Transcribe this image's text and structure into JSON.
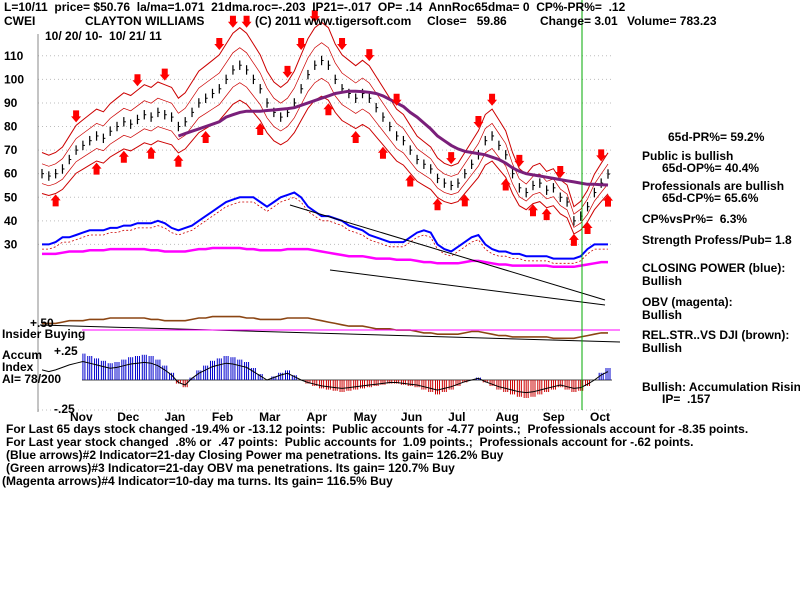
{
  "header": {
    "line1": "L=10/11  price= $50.76  la/ma=1.071  21dma.roc=-.203  IP21=-.017  OP= .14  AnnRoc65dma= 0  CP%-PR%=  .12",
    "ticker": "CWEI",
    "company": "CLAYTON WILLIAMS",
    "copyright": "(C) 2011 www.tigersoft.com",
    "close": "Close=   59.86",
    "change": "Change= 3.01",
    "volume": "Volume= 783.23",
    "date_range": "10/ 20/ 10-  10/ 21/ 11"
  },
  "side_panel": {
    "pr": "65d-PR%= 59.2%",
    "public": "Public is bullish",
    "op": "65d-OP%= 40.4%",
    "professionals": "Professionals are bullish",
    "cp": "65d-CP%= 65.6%",
    "cpvspr": "CP%vsPr%=  6.3%",
    "strength": "Strength Profess/Pub= 1.8",
    "closing_power_label": "CLOSING POWER (blue):",
    "closing_power_value": "Bullish",
    "obv_label": "OBV (magenta):",
    "obv_value": "Bullish",
    "relstr_label": "REL.STR..VS DJI (brown):",
    "relstr_value": "Bullish",
    "accum_label": "Bullish: Accumulation Rising",
    "ip_label": "IP=  .157"
  },
  "lower_labels": {
    "plus50": "+.50",
    "insider": "Insider Buying",
    "plus25": "+.25",
    "accum": "Accum",
    "index": "Index",
    "ai": "AI= 78/200",
    "minus25": "-.25"
  },
  "footer": {
    "line1": "For Last 65 days stock changed -19.4% or -13.12 points:  Public accounts for -4.77 points.;  Professionals account for -8.35 points.",
    "line2": "For Last year stock changed  .8% or  .47 points:  Public accounts for  1.09 points.;  Professionals account for -.62 points.",
    "line3": "(Blue arrows)#2 Indicator=21-day Closing Power ma penetrations. Its gain= 126.2% Buy",
    "line4": "(Green arrows)#3 Indicator=21-day OBV ma penetrations. Its gain= 120.7% Buy",
    "line5": "(Magenta arrows)#4 Indicator=10-day ma turns. Its gain= 116.5% Buy"
  },
  "colors": {
    "price": "#000000",
    "bands": "#cc0000",
    "ma65": "#7a1f7a",
    "closing_power": "#0000ff",
    "obv": "#ff00ff",
    "relstr": "#8b4513",
    "accum_pos": "#0000cc",
    "accum_neg": "#cc0000",
    "green_line": "#00aa00",
    "arrows": "#ff0000"
  },
  "chart_data": {
    "type": "line",
    "ylim": [
      20,
      115
    ],
    "yticks": [
      110,
      100,
      90,
      80,
      70,
      60,
      50,
      40,
      30
    ],
    "xticks": [
      "Nov",
      "Dec",
      "Jan",
      "Feb",
      "Mar",
      "Apr",
      "May",
      "Jun",
      "Jul",
      "Aug",
      "Sep",
      "Oct"
    ],
    "price": [
      60,
      59,
      60,
      62,
      66,
      70,
      72,
      74,
      76,
      75,
      78,
      80,
      82,
      81,
      83,
      85,
      84,
      86,
      85,
      84,
      80,
      82,
      86,
      90,
      92,
      94,
      96,
      100,
      104,
      106,
      104,
      100,
      96,
      90,
      86,
      84,
      86,
      90,
      96,
      102,
      106,
      108,
      106,
      100,
      96,
      94,
      92,
      94,
      92,
      88,
      84,
      80,
      76,
      74,
      70,
      66,
      64,
      62,
      58,
      56,
      55,
      56,
      60,
      64,
      68,
      74,
      76,
      72,
      68,
      60,
      54,
      52,
      55,
      56,
      53,
      54,
      50,
      48,
      40,
      42,
      46,
      52,
      56,
      59.86
    ],
    "ma65": [
      null,
      null,
      null,
      null,
      null,
      null,
      null,
      null,
      null,
      null,
      null,
      null,
      null,
      null,
      null,
      null,
      null,
      null,
      null,
      null,
      76,
      77,
      78,
      79,
      80,
      81,
      82,
      84,
      85,
      86,
      86.5,
      86.5,
      86.5,
      86.8,
      87,
      87.3,
      87.6,
      88,
      89,
      90,
      91,
      92,
      93,
      94,
      94.5,
      95,
      95,
      94.8,
      94.5,
      94,
      93,
      91.5,
      90,
      88.5,
      86,
      84,
      81.5,
      79,
      76,
      74,
      72,
      70.5,
      69.5,
      69,
      68.5,
      68,
      67,
      66,
      64.5,
      62.5,
      61,
      60,
      59.5,
      59,
      58.5,
      58,
      57.5,
      57,
      56.5,
      56,
      55.5,
      55.5,
      55.3,
      55.2
    ],
    "closing_power": [
      30,
      30,
      31,
      33,
      33,
      34,
      35,
      36,
      36,
      36,
      37,
      37,
      38,
      38,
      39,
      39,
      39,
      40,
      39,
      37,
      36,
      37,
      38,
      40,
      42,
      44,
      46,
      48,
      49,
      50,
      50,
      50,
      48,
      46,
      48,
      50,
      51,
      52,
      50,
      46,
      44,
      42,
      42,
      41,
      40,
      38,
      37,
      36,
      34,
      33,
      32,
      31,
      31,
      31,
      33,
      35,
      36,
      35,
      30,
      28,
      27,
      29,
      31,
      33,
      34,
      30,
      28,
      27,
      27,
      26,
      26,
      25,
      25,
      25,
      25,
      24,
      24,
      24,
      24,
      25,
      28,
      30,
      30,
      30
    ],
    "obv": [
      26,
      26,
      26,
      26.5,
      27,
      27,
      27,
      27.5,
      27.5,
      27.5,
      28,
      28,
      28,
      28,
      28,
      28,
      27.5,
      27.5,
      27,
      27,
      27,
      27,
      27.5,
      28,
      28,
      28.5,
      28.5,
      28.5,
      28.5,
      28.5,
      28,
      28,
      27.5,
      27.5,
      27.5,
      27.5,
      28,
      28,
      28,
      28,
      27.5,
      27,
      26.5,
      26,
      25.5,
      25,
      25,
      25,
      24.5,
      24,
      24,
      24,
      23.5,
      23.5,
      23.5,
      23,
      22.5,
      22.5,
      22,
      22,
      22,
      22,
      22.5,
      23,
      23,
      22.5,
      22,
      21.5,
      21.5,
      21,
      21,
      21,
      21,
      21,
      21,
      20.5,
      20.5,
      20.5,
      20.5,
      21,
      21.5,
      22,
      22.5,
      22.5
    ],
    "accum_index": [
      0.12,
      0.1,
      0.12,
      0.15,
      0.18,
      0.2,
      0.22,
      0.2,
      0.18,
      0.16,
      0.14,
      0.15,
      0.17,
      0.19,
      0.2,
      0.21,
      0.2,
      0.17,
      0.12,
      0.06,
      -0.03,
      -0.06,
      0.02,
      0.08,
      0.12,
      0.16,
      0.18,
      0.2,
      0.19,
      0.17,
      0.15,
      0.1,
      0.05,
      0.0,
      0.03,
      0.06,
      0.08,
      0.04,
      0.0,
      -0.03,
      -0.05,
      -0.07,
      -0.08,
      -0.09,
      -0.1,
      -0.09,
      -0.08,
      -0.07,
      -0.06,
      -0.05,
      -0.04,
      -0.03,
      -0.03,
      -0.04,
      -0.05,
      -0.06,
      -0.08,
      -0.1,
      -0.12,
      -0.1,
      -0.08,
      -0.05,
      -0.02,
      0.0,
      0.02,
      -0.02,
      -0.05,
      -0.08,
      -0.1,
      -0.12,
      -0.14,
      -0.15,
      -0.14,
      -0.12,
      -0.1,
      -0.08,
      -0.06,
      -0.08,
      -0.1,
      -0.09,
      -0.05,
      0.0,
      0.06,
      0.1
    ]
  }
}
